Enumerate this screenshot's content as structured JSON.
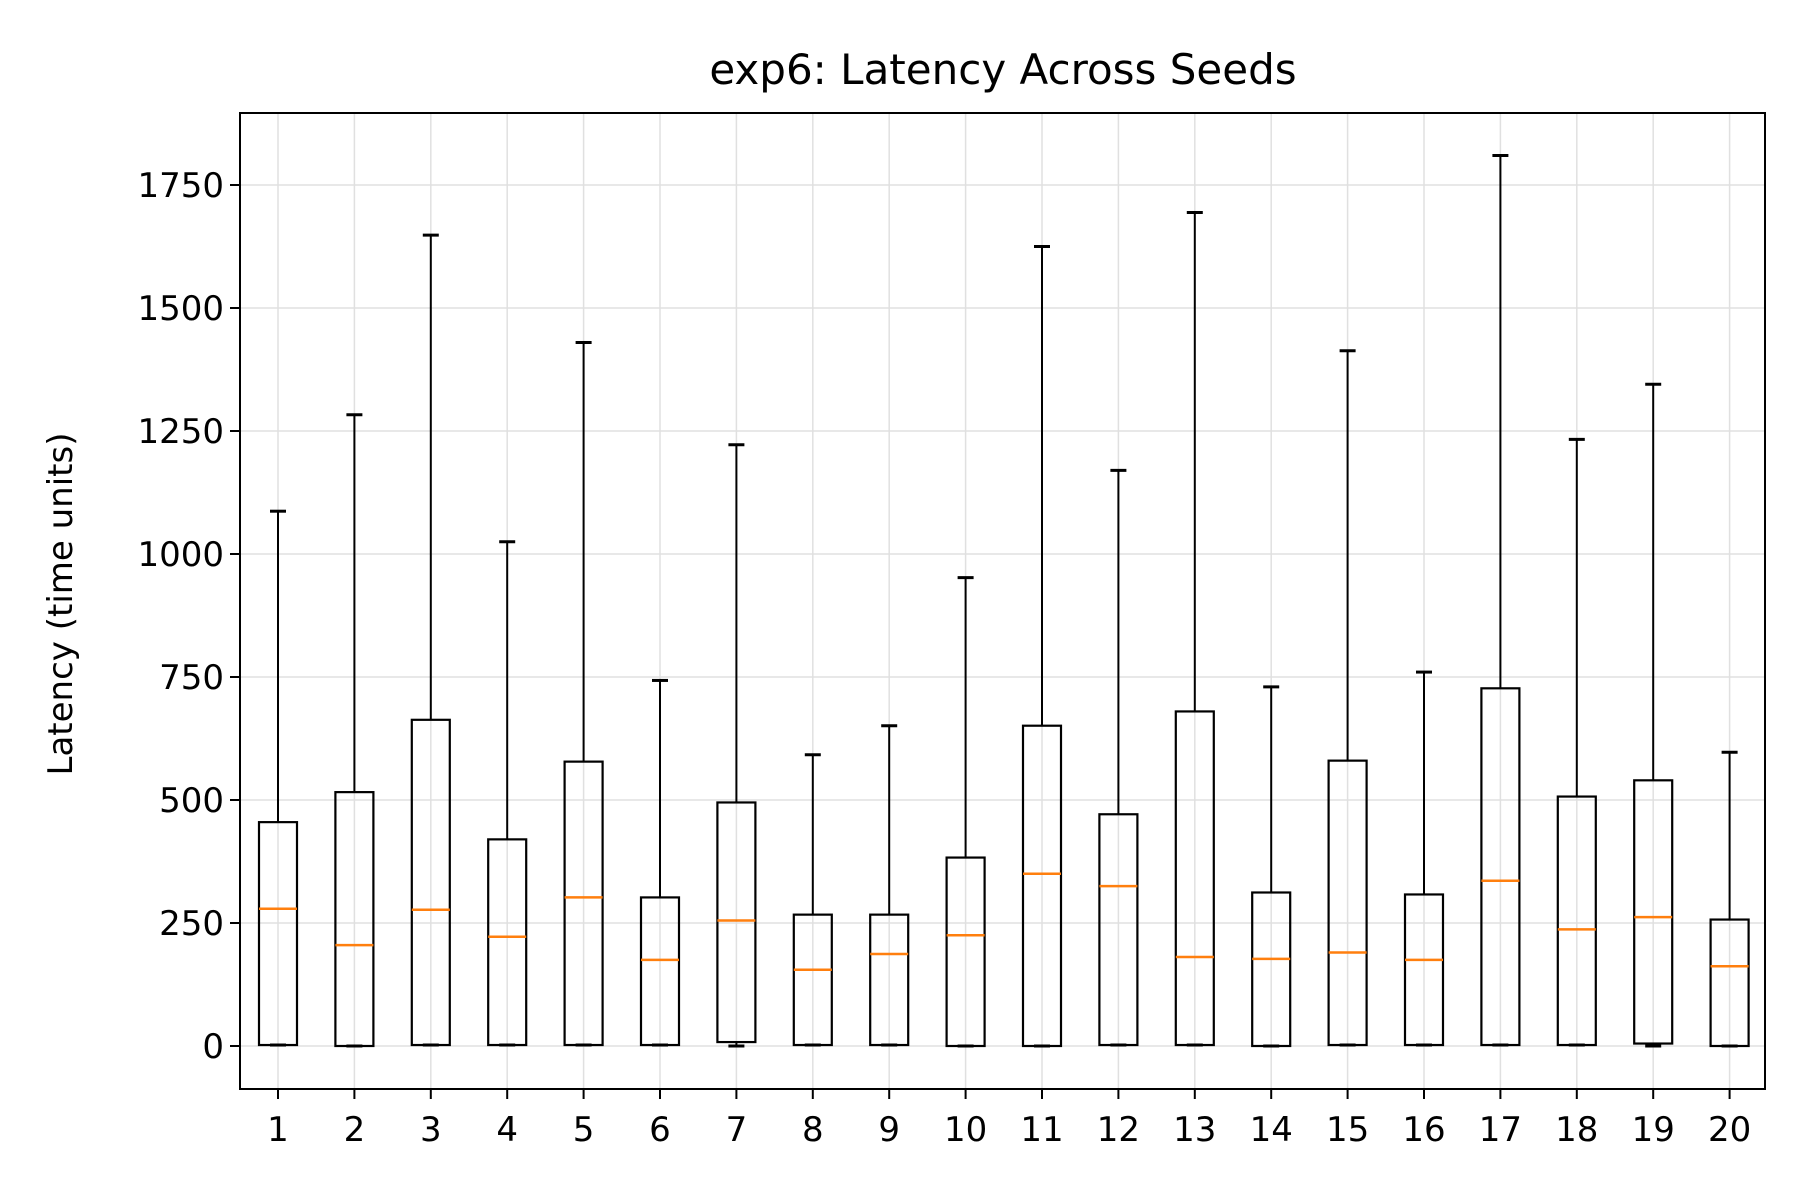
{
  "chart_data": {
    "type": "box",
    "title": "exp6: Latency Across Seeds",
    "xlabel": "",
    "ylabel": "Latency (time units)",
    "ylim": [
      -90,
      1900
    ],
    "yticks": [
      0,
      250,
      500,
      750,
      1000,
      1250,
      1500,
      1750
    ],
    "grid": true,
    "colors": {
      "box": "#000000",
      "median": "#ff7f0e",
      "grid": "#e0e0e0"
    },
    "categories": [
      "1",
      "2",
      "3",
      "4",
      "5",
      "6",
      "7",
      "8",
      "9",
      "10",
      "11",
      "12",
      "13",
      "14",
      "15",
      "16",
      "17",
      "18",
      "19",
      "20"
    ],
    "boxes": [
      {
        "label": "1",
        "whislo": 2,
        "q1": 2,
        "med": 279,
        "q3": 455,
        "whishi": 1087
      },
      {
        "label": "2",
        "whislo": 0,
        "q1": 0,
        "med": 205,
        "q3": 516,
        "whishi": 1283
      },
      {
        "label": "3",
        "whislo": 2,
        "q1": 2,
        "med": 277,
        "q3": 663,
        "whishi": 1648
      },
      {
        "label": "4",
        "whislo": 2,
        "q1": 2,
        "med": 222,
        "q3": 420,
        "whishi": 1025
      },
      {
        "label": "5",
        "whislo": 2,
        "q1": 2,
        "med": 302,
        "q3": 578,
        "whishi": 1430
      },
      {
        "label": "6",
        "whislo": 2,
        "q1": 2,
        "med": 175,
        "q3": 302,
        "whishi": 743
      },
      {
        "label": "7",
        "whislo": 0,
        "q1": 8,
        "med": 255,
        "q3": 495,
        "whishi": 1222
      },
      {
        "label": "8",
        "whislo": 2,
        "q1": 2,
        "med": 155,
        "q3": 267,
        "whishi": 592
      },
      {
        "label": "9",
        "whislo": 2,
        "q1": 2,
        "med": 187,
        "q3": 267,
        "whishi": 651
      },
      {
        "label": "10",
        "whislo": 0,
        "q1": 0,
        "med": 225,
        "q3": 383,
        "whishi": 952
      },
      {
        "label": "11",
        "whislo": 0,
        "q1": 0,
        "med": 350,
        "q3": 651,
        "whishi": 1625
      },
      {
        "label": "12",
        "whislo": 2,
        "q1": 2,
        "med": 325,
        "q3": 471,
        "whishi": 1170
      },
      {
        "label": "13",
        "whislo": 2,
        "q1": 2,
        "med": 181,
        "q3": 680,
        "whishi": 1694
      },
      {
        "label": "14",
        "whislo": 0,
        "q1": 0,
        "med": 177,
        "q3": 312,
        "whishi": 730
      },
      {
        "label": "15",
        "whislo": 2,
        "q1": 2,
        "med": 190,
        "q3": 580,
        "whishi": 1413
      },
      {
        "label": "16",
        "whislo": 2,
        "q1": 2,
        "med": 175,
        "q3": 308,
        "whishi": 760
      },
      {
        "label": "17",
        "whislo": 2,
        "q1": 2,
        "med": 336,
        "q3": 727,
        "whishi": 1810
      },
      {
        "label": "18",
        "whislo": 2,
        "q1": 2,
        "med": 237,
        "q3": 507,
        "whishi": 1233
      },
      {
        "label": "19",
        "whislo": 0,
        "q1": 5,
        "med": 262,
        "q3": 540,
        "whishi": 1345
      },
      {
        "label": "20",
        "whislo": 0,
        "q1": 0,
        "med": 162,
        "q3": 257,
        "whishi": 597
      }
    ]
  }
}
